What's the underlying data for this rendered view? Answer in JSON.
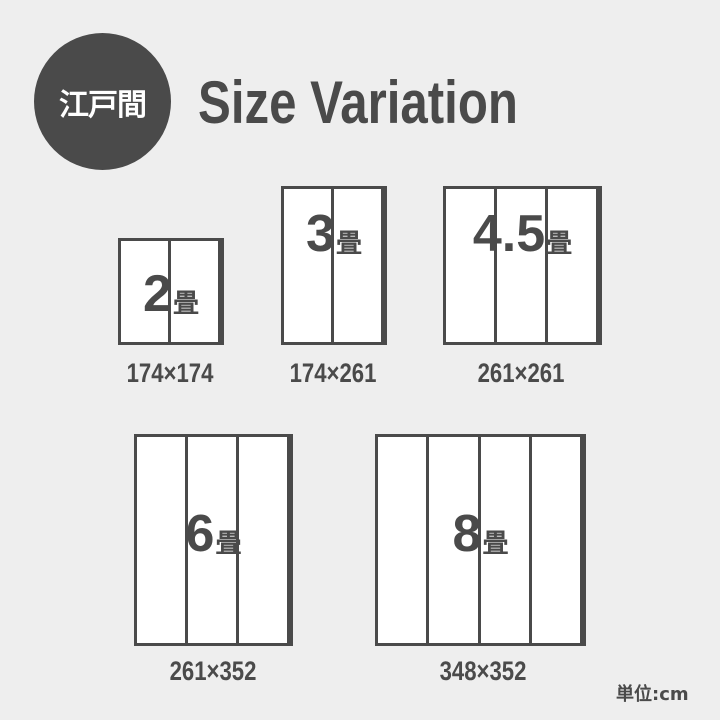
{
  "badge": {
    "label": "江戸間"
  },
  "title": "Size Variation",
  "unit_label": "単位:cm",
  "rooms": [
    {
      "size": "2",
      "unit": "畳",
      "mats": 2,
      "dimensions": "174×174"
    },
    {
      "size": "3",
      "unit": "畳",
      "mats": 2,
      "dimensions": "174×261"
    },
    {
      "size": "4.5",
      "unit": "畳",
      "mats": 3,
      "dimensions": "261×261"
    },
    {
      "size": "6",
      "unit": "畳",
      "mats": 3,
      "dimensions": "261×352"
    },
    {
      "size": "8",
      "unit": "畳",
      "mats": 4,
      "dimensions": "348×352"
    }
  ],
  "colors": {
    "ink": "#4a4a4a",
    "background": "#eeeeee",
    "mat": "#ffffff"
  }
}
